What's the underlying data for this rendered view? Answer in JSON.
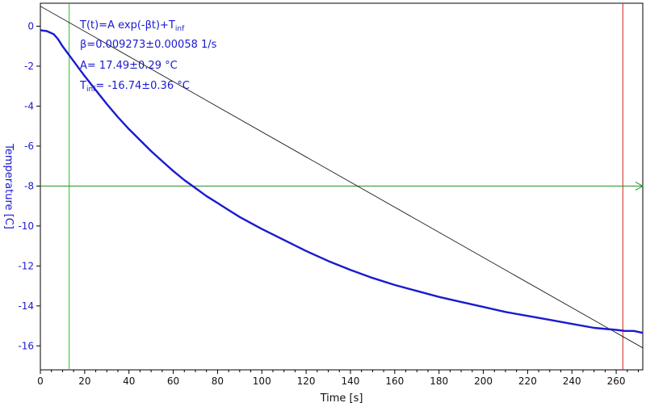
{
  "chart_data": {
    "type": "line",
    "xlabel": "Time [s]",
    "ylabel": "Temperature [C]",
    "xlim": [
      0,
      272
    ],
    "ylim": [
      -17.2,
      1.15
    ],
    "xticks": [
      0,
      20,
      40,
      60,
      80,
      100,
      120,
      140,
      160,
      180,
      200,
      220,
      240,
      260
    ],
    "yticks": [
      0,
      -2,
      -4,
      -6,
      -8,
      -10,
      -12,
      -14,
      -16
    ],
    "grid": false,
    "series": [
      {
        "x": [
          0,
          3,
          6,
          8,
          10,
          12,
          15,
          20,
          25,
          30,
          35,
          40,
          45,
          50,
          55,
          60,
          65,
          70,
          75,
          80,
          85,
          90,
          95,
          100,
          110,
          120,
          130,
          140,
          150,
          160,
          170,
          180,
          190,
          200,
          210,
          220,
          230,
          240,
          250,
          260,
          264,
          268,
          272
        ],
        "y": [
          -0.2,
          -0.25,
          -0.4,
          -0.65,
          -1.0,
          -1.3,
          -1.75,
          -2.5,
          -3.2,
          -3.9,
          -4.55,
          -5.15,
          -5.7,
          -6.25,
          -6.75,
          -7.25,
          -7.7,
          -8.1,
          -8.5,
          -8.85,
          -9.2,
          -9.55,
          -9.85,
          -10.15,
          -10.7,
          -11.25,
          -11.75,
          -12.2,
          -12.6,
          -12.95,
          -13.25,
          -13.55,
          -13.8,
          -14.05,
          -14.3,
          -14.5,
          -14.7,
          -14.9,
          -15.1,
          -15.2,
          -15.25,
          -15.25,
          -15.35
        ],
        "color": "#1a1ad0"
      }
    ],
    "fit_line": {
      "x": [
        0,
        272
      ],
      "y": [
        1.0,
        -16.1
      ],
      "color": "#000000"
    },
    "vertical_markers": [
      {
        "x": 13,
        "color": "#22c022"
      },
      {
        "x": 263,
        "color": "#d02020"
      }
    ],
    "horizontal_marker": {
      "y": -8,
      "color": "#209020"
    },
    "annotations": {
      "formula_main": "T(t)=A exp(-βt)+T",
      "formula_sub": "inf",
      "beta": "β=0.009273±0.00058 1/s",
      "amp": "A= 17.49±0.29 °C",
      "tinf_main": "T",
      "tinf_sub": "inf",
      "tinf_rest": "= -16.74±0.36 °C"
    },
    "colors": {
      "axis_text_y": "#1a1ad0",
      "axis_text_x": "#111111",
      "frame": "#000000"
    }
  }
}
